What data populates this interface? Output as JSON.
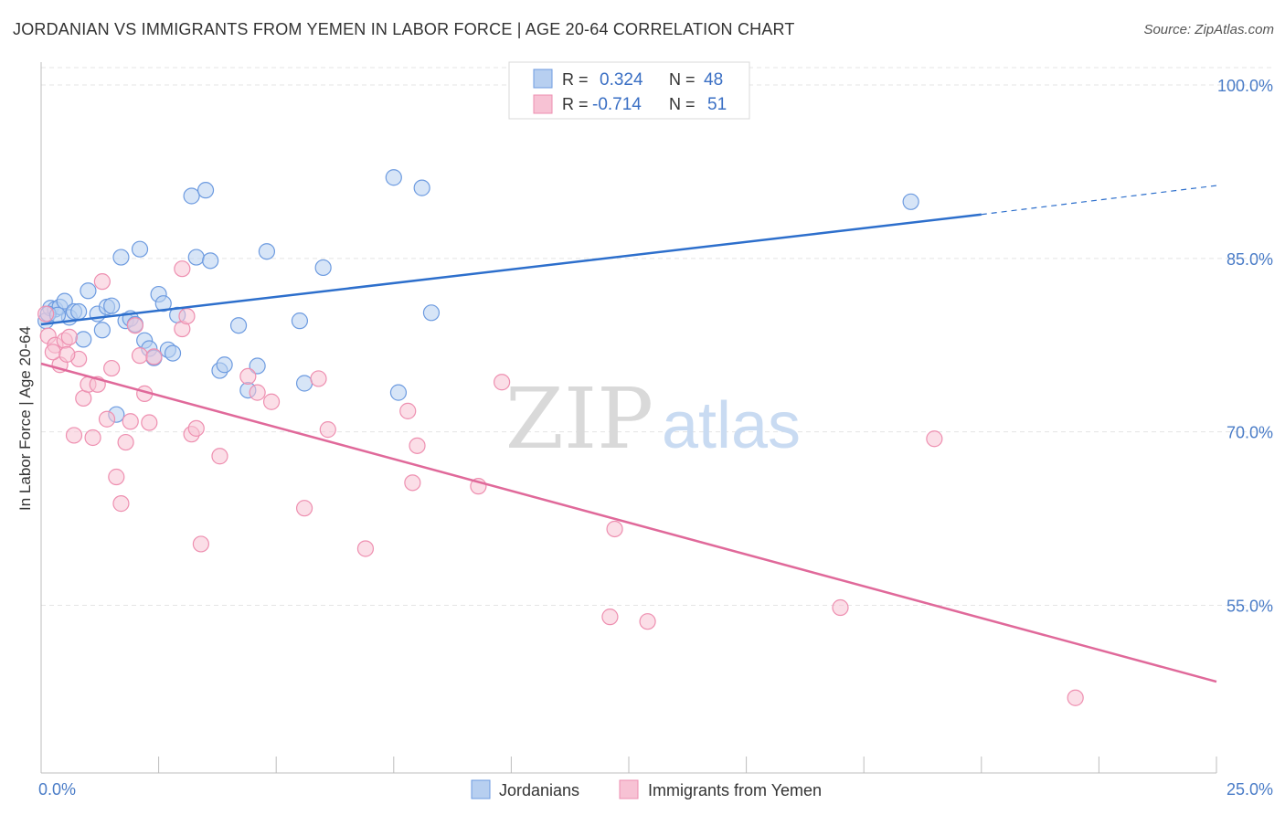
{
  "header": {
    "title": "JORDANIAN VS IMMIGRANTS FROM YEMEN IN LABOR FORCE | AGE 20-64 CORRELATION CHART",
    "source": "Source: ZipAtlas.com"
  },
  "watermark": {
    "part1": "ZIP",
    "part2": "atlas"
  },
  "legend_top": [
    {
      "r_label": "R =",
      "r_value": "0.324",
      "n_label": "N =",
      "n_value": "48"
    },
    {
      "r_label": "R =",
      "r_value": "-0.714",
      "n_label": "N =",
      "n_value": "51"
    }
  ],
  "legend_bottom": [
    {
      "label": "Jordanians"
    },
    {
      "label": "Immigrants from Yemen"
    }
  ],
  "chart_data": {
    "type": "scatter",
    "title": "JORDANIAN VS IMMIGRANTS FROM YEMEN IN LABOR FORCE | AGE 20-64 CORRELATION CHART",
    "ylabel": "In Labor Force | Age 20-64",
    "xlabel": "",
    "xlim": [
      0,
      25
    ],
    "ylim": [
      40.5,
      101.5
    ],
    "x_tick_labels": [
      {
        "value": 0,
        "label": "0.0%"
      },
      {
        "value": 25,
        "label": "25.0%"
      }
    ],
    "y_tick_labels": [
      {
        "value": 100,
        "label": "100.0%"
      },
      {
        "value": 85,
        "label": "85.0%"
      },
      {
        "value": 70,
        "label": "70.0%"
      },
      {
        "value": 55,
        "label": "55.0%"
      }
    ],
    "grid": true,
    "legend_position": "top-center",
    "colors": {
      "jordanians_fill": "#b7cff0",
      "jordanians_stroke": "#6d9be0",
      "jordanians_line": "#2d6fcc",
      "yemen_fill": "#f7c2d4",
      "yemen_stroke": "#ee8fb0",
      "yemen_line": "#e0699a"
    },
    "series": [
      {
        "name": "Jordanians",
        "r": 0.324,
        "n": 48,
        "trend": {
          "x0": 0,
          "y0": 79.3,
          "x1": 20,
          "y1": 88.8,
          "dash_to_x": 25,
          "dash_to_y": 91.3
        },
        "points": [
          [
            0.1,
            79.6
          ],
          [
            0.2,
            80.7
          ],
          [
            0.3,
            80.6
          ],
          [
            0.4,
            80.8
          ],
          [
            0.5,
            81.3
          ],
          [
            0.6,
            79.9
          ],
          [
            0.7,
            80.4
          ],
          [
            0.8,
            80.4
          ],
          [
            0.9,
            78.0
          ],
          [
            1.0,
            82.2
          ],
          [
            1.2,
            80.2
          ],
          [
            1.3,
            78.8
          ],
          [
            1.4,
            80.8
          ],
          [
            1.5,
            80.9
          ],
          [
            1.6,
            71.5
          ],
          [
            1.7,
            85.1
          ],
          [
            1.8,
            79.6
          ],
          [
            1.9,
            79.8
          ],
          [
            2.0,
            79.3
          ],
          [
            2.1,
            85.8
          ],
          [
            2.2,
            77.9
          ],
          [
            2.3,
            77.2
          ],
          [
            2.4,
            76.4
          ],
          [
            2.5,
            81.9
          ],
          [
            2.6,
            81.1
          ],
          [
            2.7,
            77.1
          ],
          [
            2.8,
            76.8
          ],
          [
            2.9,
            80.1
          ],
          [
            3.2,
            90.4
          ],
          [
            3.3,
            85.1
          ],
          [
            3.5,
            90.9
          ],
          [
            3.6,
            84.8
          ],
          [
            3.8,
            75.3
          ],
          [
            3.9,
            75.8
          ],
          [
            4.2,
            79.2
          ],
          [
            4.4,
            73.6
          ],
          [
            4.6,
            75.7
          ],
          [
            4.8,
            85.6
          ],
          [
            5.5,
            79.6
          ],
          [
            5.6,
            74.2
          ],
          [
            6.0,
            84.2
          ],
          [
            7.5,
            92.0
          ],
          [
            7.6,
            73.4
          ],
          [
            8.1,
            91.1
          ],
          [
            8.3,
            80.3
          ],
          [
            18.5,
            89.9
          ],
          [
            0.15,
            80.2
          ],
          [
            0.35,
            80.1
          ]
        ]
      },
      {
        "name": "Immigrants from Yemen",
        "r": -0.714,
        "n": 51,
        "trend": {
          "x0": 0,
          "y0": 75.9,
          "x1": 25,
          "y1": 48.4
        },
        "points": [
          [
            0.1,
            80.2
          ],
          [
            0.15,
            78.3
          ],
          [
            0.3,
            77.5
          ],
          [
            0.4,
            75.8
          ],
          [
            0.5,
            77.9
          ],
          [
            0.6,
            78.2
          ],
          [
            0.7,
            69.7
          ],
          [
            0.8,
            76.3
          ],
          [
            0.9,
            72.9
          ],
          [
            1.0,
            74.1
          ],
          [
            1.1,
            69.5
          ],
          [
            1.2,
            74.1
          ],
          [
            1.3,
            83.0
          ],
          [
            1.4,
            71.1
          ],
          [
            1.5,
            75.5
          ],
          [
            1.6,
            66.1
          ],
          [
            1.7,
            63.8
          ],
          [
            1.8,
            69.1
          ],
          [
            1.9,
            70.9
          ],
          [
            2.0,
            79.2
          ],
          [
            2.1,
            76.6
          ],
          [
            2.2,
            73.3
          ],
          [
            2.3,
            70.8
          ],
          [
            2.4,
            76.5
          ],
          [
            3.0,
            84.1
          ],
          [
            3.0,
            78.9
          ],
          [
            3.1,
            80.0
          ],
          [
            3.2,
            69.8
          ],
          [
            3.3,
            70.3
          ],
          [
            3.4,
            60.3
          ],
          [
            3.8,
            67.9
          ],
          [
            4.4,
            74.8
          ],
          [
            4.6,
            73.4
          ],
          [
            4.9,
            72.6
          ],
          [
            5.6,
            63.4
          ],
          [
            5.9,
            74.6
          ],
          [
            6.1,
            70.2
          ],
          [
            6.9,
            59.9
          ],
          [
            7.8,
            71.8
          ],
          [
            7.9,
            65.6
          ],
          [
            8.0,
            68.8
          ],
          [
            9.3,
            65.3
          ],
          [
            9.8,
            74.3
          ],
          [
            12.2,
            61.6
          ],
          [
            12.1,
            54.0
          ],
          [
            12.9,
            53.6
          ],
          [
            17.0,
            54.8
          ],
          [
            19.0,
            69.4
          ],
          [
            22.0,
            47.0
          ],
          [
            0.25,
            76.9
          ],
          [
            0.55,
            76.7
          ]
        ]
      }
    ]
  }
}
